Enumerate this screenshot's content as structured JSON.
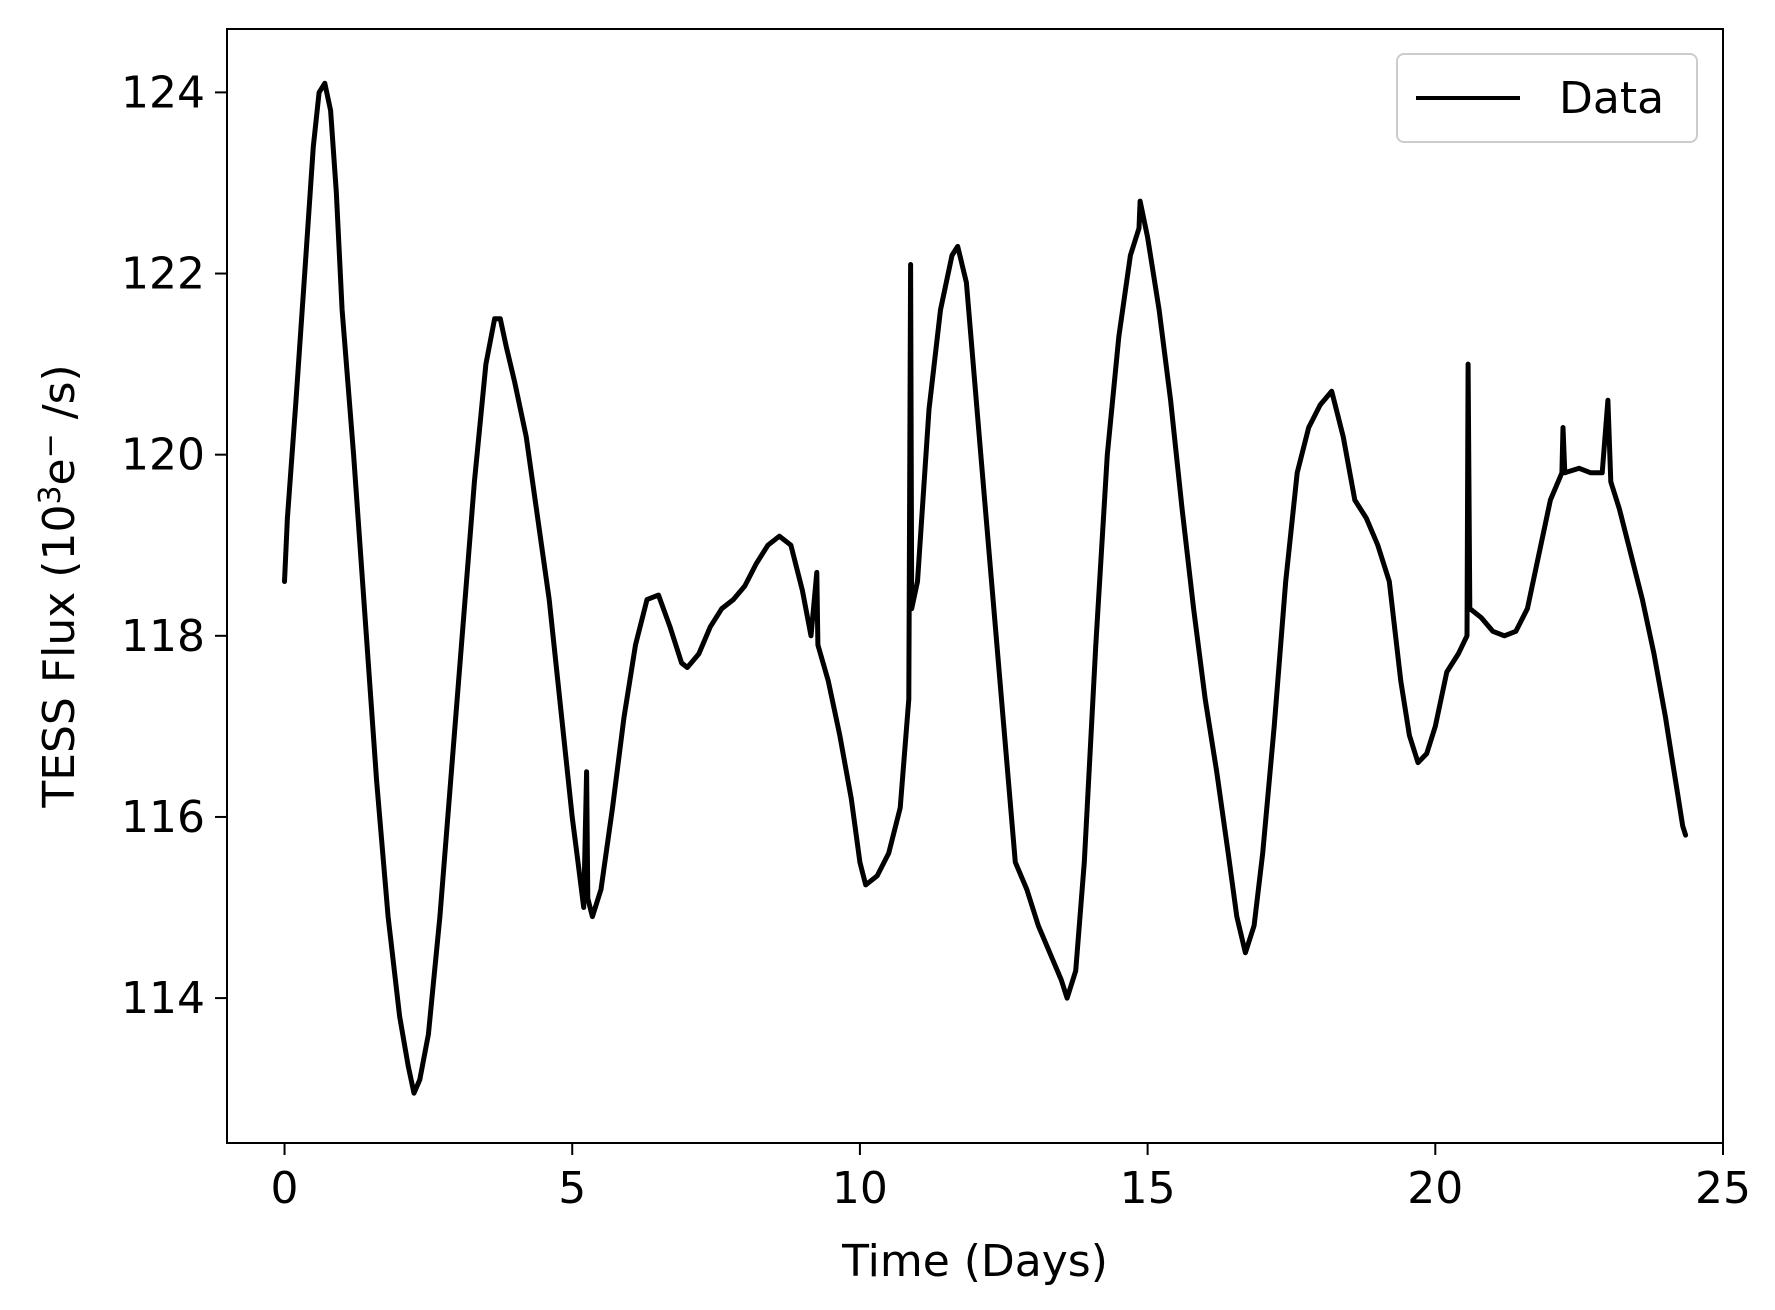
{
  "chart_data": {
    "type": "line",
    "title": "",
    "xlabel": "Time (Days)",
    "ylabel": {
      "prefix": "TESS Flux (10",
      "exp": "3",
      "mid": "e",
      "sup2": "−",
      "suffix": " /s)"
    },
    "xlim": [
      -1,
      25
    ],
    "ylim": [
      112.4,
      124.7
    ],
    "xticks": [
      0,
      5,
      10,
      15,
      20,
      25
    ],
    "xtick_labels": [
      "0",
      "5",
      "10",
      "15",
      "20",
      "25"
    ],
    "yticks": [
      114,
      116,
      118,
      120,
      122,
      124
    ],
    "ytick_labels": [
      "114",
      "116",
      "118",
      "120",
      "122",
      "124"
    ],
    "grid": false,
    "legend": {
      "location": "upper right",
      "entries": [
        "Data"
      ]
    },
    "series": [
      {
        "name": "Data",
        "color": "#000000",
        "points": [
          [
            0.0,
            118.6
          ],
          [
            0.05,
            119.3
          ],
          [
            0.2,
            120.6
          ],
          [
            0.35,
            122.0
          ],
          [
            0.5,
            123.4
          ],
          [
            0.6,
            124.0
          ],
          [
            0.7,
            124.1
          ],
          [
            0.8,
            123.8
          ],
          [
            0.9,
            122.9
          ],
          [
            1.0,
            121.6
          ],
          [
            1.2,
            120.0
          ],
          [
            1.4,
            118.2
          ],
          [
            1.6,
            116.4
          ],
          [
            1.8,
            114.9
          ],
          [
            2.0,
            113.8
          ],
          [
            2.15,
            113.25
          ],
          [
            2.25,
            112.95
          ],
          [
            2.35,
            113.1
          ],
          [
            2.5,
            113.6
          ],
          [
            2.7,
            114.9
          ],
          [
            2.9,
            116.5
          ],
          [
            3.1,
            118.1
          ],
          [
            3.3,
            119.7
          ],
          [
            3.5,
            121.0
          ],
          [
            3.65,
            121.5
          ],
          [
            3.75,
            121.5
          ],
          [
            3.85,
            121.2
          ],
          [
            4.0,
            120.8
          ],
          [
            4.2,
            120.2
          ],
          [
            4.4,
            119.3
          ],
          [
            4.6,
            118.4
          ],
          [
            4.8,
            117.2
          ],
          [
            5.0,
            116.0
          ],
          [
            5.1,
            115.5
          ],
          [
            5.2,
            115.0
          ],
          [
            5.25,
            116.5
          ],
          [
            5.27,
            115.1
          ],
          [
            5.35,
            114.9
          ],
          [
            5.5,
            115.2
          ],
          [
            5.7,
            116.1
          ],
          [
            5.9,
            117.1
          ],
          [
            6.1,
            117.9
          ],
          [
            6.3,
            118.4
          ],
          [
            6.5,
            118.45
          ],
          [
            6.7,
            118.1
          ],
          [
            6.9,
            117.7
          ],
          [
            7.0,
            117.65
          ],
          [
            7.2,
            117.8
          ],
          [
            7.4,
            118.1
          ],
          [
            7.6,
            118.3
          ],
          [
            7.8,
            118.4
          ],
          [
            8.0,
            118.55
          ],
          [
            8.2,
            118.8
          ],
          [
            8.4,
            119.0
          ],
          [
            8.6,
            119.1
          ],
          [
            8.8,
            119.0
          ],
          [
            9.0,
            118.5
          ],
          [
            9.15,
            118.0
          ],
          [
            9.25,
            118.7
          ],
          [
            9.27,
            117.9
          ],
          [
            9.45,
            117.5
          ],
          [
            9.65,
            116.9
          ],
          [
            9.85,
            116.2
          ],
          [
            10.0,
            115.5
          ],
          [
            10.1,
            115.25
          ],
          [
            10.3,
            115.35
          ],
          [
            10.5,
            115.6
          ],
          [
            10.7,
            116.1
          ],
          [
            10.85,
            117.3
          ],
          [
            10.88,
            122.1
          ],
          [
            10.9,
            118.3
          ],
          [
            11.0,
            118.6
          ],
          [
            11.2,
            120.5
          ],
          [
            11.4,
            121.6
          ],
          [
            11.6,
            122.2
          ],
          [
            11.7,
            122.3
          ],
          [
            11.85,
            121.9
          ],
          [
            12.1,
            120.0
          ],
          [
            12.3,
            118.5
          ],
          [
            12.5,
            117.0
          ],
          [
            12.7,
            115.5
          ],
          [
            12.9,
            115.2
          ],
          [
            13.1,
            114.8
          ],
          [
            13.3,
            114.5
          ],
          [
            13.5,
            114.2
          ],
          [
            13.6,
            114.0
          ],
          [
            13.75,
            114.3
          ],
          [
            13.9,
            115.5
          ],
          [
            14.1,
            117.9
          ],
          [
            14.3,
            120.0
          ],
          [
            14.5,
            121.3
          ],
          [
            14.7,
            122.2
          ],
          [
            14.85,
            122.5
          ],
          [
            14.87,
            122.8
          ],
          [
            15.0,
            122.4
          ],
          [
            15.2,
            121.6
          ],
          [
            15.4,
            120.6
          ],
          [
            15.6,
            119.4
          ],
          [
            15.8,
            118.3
          ],
          [
            16.0,
            117.3
          ],
          [
            16.2,
            116.5
          ],
          [
            16.4,
            115.6
          ],
          [
            16.55,
            114.9
          ],
          [
            16.7,
            114.5
          ],
          [
            16.85,
            114.8
          ],
          [
            17.0,
            115.6
          ],
          [
            17.2,
            117.0
          ],
          [
            17.4,
            118.6
          ],
          [
            17.6,
            119.8
          ],
          [
            17.8,
            120.3
          ],
          [
            18.0,
            120.55
          ],
          [
            18.2,
            120.7
          ],
          [
            18.4,
            120.2
          ],
          [
            18.6,
            119.5
          ],
          [
            18.8,
            119.3
          ],
          [
            19.0,
            119.0
          ],
          [
            19.2,
            118.6
          ],
          [
            19.4,
            117.5
          ],
          [
            19.55,
            116.9
          ],
          [
            19.7,
            116.6
          ],
          [
            19.85,
            116.7
          ],
          [
            20.0,
            117.0
          ],
          [
            20.2,
            117.6
          ],
          [
            20.4,
            117.8
          ],
          [
            20.55,
            118.0
          ],
          [
            20.57,
            121.0
          ],
          [
            20.6,
            118.3
          ],
          [
            20.8,
            118.2
          ],
          [
            21.0,
            118.05
          ],
          [
            21.2,
            118.0
          ],
          [
            21.4,
            118.05
          ],
          [
            21.6,
            118.3
          ],
          [
            21.8,
            118.9
          ],
          [
            22.0,
            119.5
          ],
          [
            22.2,
            119.8
          ],
          [
            22.22,
            120.3
          ],
          [
            22.25,
            119.8
          ],
          [
            22.5,
            119.85
          ],
          [
            22.7,
            119.8
          ],
          [
            22.9,
            119.8
          ],
          [
            23.0,
            120.6
          ],
          [
            23.05,
            119.7
          ],
          [
            23.2,
            119.4
          ],
          [
            23.4,
            118.9
          ],
          [
            23.6,
            118.4
          ],
          [
            23.8,
            117.8
          ],
          [
            24.0,
            117.1
          ],
          [
            24.1,
            116.7
          ],
          [
            24.2,
            116.3
          ],
          [
            24.3,
            115.9
          ],
          [
            24.35,
            115.8
          ]
        ]
      }
    ]
  }
}
